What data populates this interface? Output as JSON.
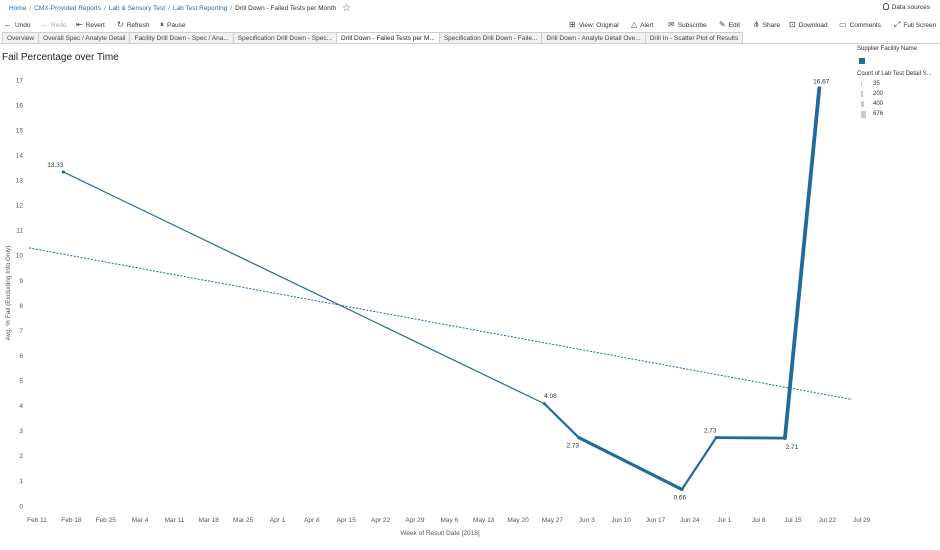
{
  "breadcrumb": {
    "items": [
      "Home",
      "CMX-Provided Reports",
      "Lab & Sensory Test",
      "Lab Test Reporting"
    ],
    "current": "Drill Down - Failed Tests per Month"
  },
  "data_sources_label": "Data sources",
  "toolbar": {
    "undo": "Undo",
    "redo": "Redo",
    "revert": "Revert",
    "refresh": "Refresh",
    "pause": "Pause",
    "view_original": "View: Original",
    "alert": "Alert",
    "subscribe": "Subscribe",
    "edit": "Edit",
    "share": "Share",
    "download": "Download",
    "comments": "Comments",
    "full_screen": "Full Screen"
  },
  "tabs": [
    "Overview",
    "Overall Spec / Analyte Detail",
    "Facility Drill Down - Spec / Ana...",
    "Specification Drill Down - Spec...",
    "Drill Down - Failed Tests per M...",
    "Specification Drill Down - Faile...",
    "Drill Down - Analyte Detail Ove...",
    "Drill In - Scatter Plot of Results"
  ],
  "active_tab_index": 4,
  "sheet_title": "Fail Percentage over Time",
  "legend": {
    "color_title": "Supplier Facility Name",
    "size_title": "Count of Lab Test Detail S...",
    "sizes": [
      "35",
      "200",
      "400",
      "676"
    ],
    "series_color": "#1f6b9c"
  },
  "chart_data": {
    "type": "line",
    "xlabel": "Week of Result Date [2018]",
    "ylabel": "Avg. % Fail (Excluding Info Only)",
    "ylim": [
      0,
      17
    ],
    "yticks": [
      0,
      1,
      2,
      3,
      4,
      5,
      6,
      7,
      8,
      9,
      10,
      11,
      12,
      13,
      14,
      15,
      16,
      17
    ],
    "xticks": [
      "Feb 11",
      "Feb 18",
      "Feb 25",
      "Mar 4",
      "Mar 11",
      "Mar 18",
      "Mar 25",
      "Apr 1",
      "Apr 8",
      "Apr 15",
      "Apr 22",
      "Apr 29",
      "May 6",
      "May 13",
      "May 20",
      "May 27",
      "Jun 3",
      "Jun 10",
      "Jun 17",
      "Jun 24",
      "Jul 1",
      "Jul 8",
      "Jul 15",
      "Jul 22",
      "Jul 29"
    ],
    "series": [
      {
        "x": [
          "Feb 18",
          "May 27",
          "Jun 3",
          "Jun 24",
          "Jul 1",
          "Jul 15",
          "Jul 22"
        ],
        "values": [
          13.33,
          4.08,
          2.73,
          0.66,
          2.73,
          2.71,
          16.67
        ],
        "labels": [
          "13.33",
          "4.08",
          "2.73",
          "0.66",
          "2.73",
          "2.71",
          "16.67"
        ],
        "color": "#1f6b9c"
      }
    ],
    "trend_line": {
      "style": "dashed",
      "start": 10.3,
      "end": 4.25,
      "x_start": "Feb 11",
      "x_end": "Aug 3"
    },
    "grid": false
  }
}
